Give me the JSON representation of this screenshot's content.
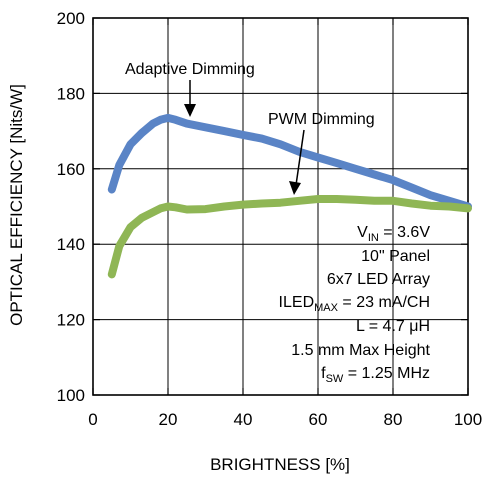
{
  "chart_data": {
    "type": "line",
    "xlabel": "BRIGHTNESS [%]",
    "ylabel": "OPTICAL EFFICIENCY [Nits/W]",
    "xlim": [
      0,
      100
    ],
    "ylim": [
      100,
      200
    ],
    "xticks": [
      0,
      20,
      40,
      60,
      80,
      100
    ],
    "yticks": [
      100,
      120,
      140,
      160,
      180,
      200
    ],
    "grid": true,
    "colors": {
      "adaptive": "#5a84c6",
      "pwm": "#8fb655"
    },
    "series": [
      {
        "name": "Adaptive Dimming",
        "x": [
          5,
          7,
          10,
          13,
          16,
          18,
          20,
          22,
          25,
          30,
          35,
          40,
          45,
          50,
          55,
          60,
          65,
          70,
          75,
          80,
          85,
          90,
          95,
          100
        ],
        "y": [
          154.5,
          161,
          166.5,
          169.5,
          172,
          173,
          173.5,
          173,
          172,
          171,
          170,
          169,
          168,
          166.5,
          164.5,
          163,
          161.5,
          160,
          158.5,
          157,
          155,
          153,
          151.5,
          150
        ]
      },
      {
        "name": "PWM Dimming",
        "x": [
          5,
          7,
          10,
          13,
          16,
          18,
          20,
          22,
          25,
          30,
          35,
          40,
          45,
          50,
          55,
          60,
          65,
          70,
          75,
          80,
          85,
          90,
          95,
          100
        ],
        "y": [
          132,
          139.5,
          144.5,
          147,
          148.5,
          149.5,
          150,
          149.8,
          149.2,
          149.3,
          150,
          150.5,
          150.8,
          151,
          151.5,
          152,
          152,
          151.8,
          151.5,
          151.5,
          150.8,
          150.2,
          150,
          149.5
        ]
      }
    ],
    "annotations": {
      "adaptive_label": "Adaptive Dimming",
      "pwm_label": "PWM Dimming",
      "conditions": {
        "vin": {
          "main": "V",
          "sub": "IN",
          "rest": " = 3.6V"
        },
        "panel": "10\" Panel",
        "array": "6x7 LED Array",
        "iled": {
          "main": "ILED",
          "sub": "MAX",
          "rest": " = 23 mA/CH"
        },
        "inductance": "L = 4.7 μH",
        "height": "1.5 mm Max Height",
        "fsw": {
          "main": "f",
          "sub": "SW",
          "rest": " = 1.25 MHz"
        }
      }
    }
  }
}
